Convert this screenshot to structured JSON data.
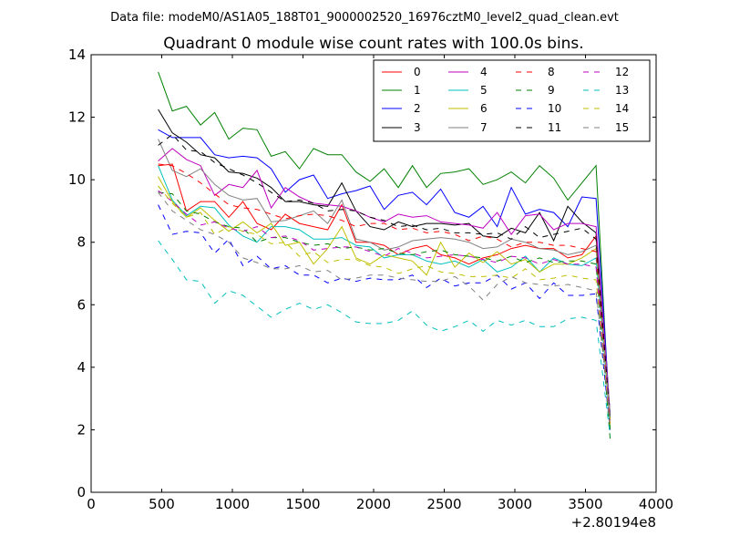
{
  "suptitle": "Data file: modeM0/AS1A05_188T01_9000002520_16976cztM0_level2_quad_clean.evt",
  "chart_data": {
    "type": "line",
    "title": "Quadrant 0 module wise count rates with 100.0s bins.",
    "xlabel": "",
    "ylabel": "",
    "x_offset_label": "+2.80194e8",
    "xlim": [
      0,
      4000
    ],
    "ylim": [
      0,
      14
    ],
    "xticks": [
      0,
      500,
      1000,
      1500,
      2000,
      2500,
      3000,
      3500,
      4000
    ],
    "xtick_labels": [
      "0",
      "500",
      "1000",
      "1500",
      "2000",
      "2500",
      "3000",
      "3500",
      "4000"
    ],
    "yticks": [
      0,
      2,
      4,
      6,
      8,
      10,
      12,
      14
    ],
    "ytick_labels": [
      "0",
      "2",
      "4",
      "6",
      "8",
      "10",
      "12",
      "14"
    ],
    "grid": false,
    "legend": {
      "placement": "top-right",
      "columns": 4
    },
    "x": [
      475,
      575,
      675,
      775,
      875,
      975,
      1075,
      1175,
      1275,
      1375,
      1475,
      1575,
      1675,
      1775,
      1875,
      1975,
      2075,
      2175,
      2275,
      2375,
      2475,
      2575,
      2675,
      2775,
      2875,
      2975,
      3075,
      3175,
      3275,
      3375,
      3475,
      3575,
      3675
    ],
    "series": [
      {
        "name": "0",
        "color": "#ff0000",
        "dash": "solid",
        "values": [
          10.45,
          10.5,
          9.0,
          9.3,
          9.3,
          8.8,
          9.3,
          8.6,
          8.4,
          8.9,
          8.6,
          8.5,
          8.4,
          9.2,
          8.0,
          8.0,
          7.9,
          7.6,
          7.8,
          7.9,
          7.6,
          7.5,
          7.3,
          7.5,
          7.6,
          7.8,
          7.9,
          7.8,
          7.8,
          7.5,
          7.6,
          8.2,
          2.4
        ]
      },
      {
        "name": "1",
        "color": "#008000",
        "dash": "solid",
        "values": [
          13.45,
          12.2,
          12.35,
          11.75,
          12.15,
          11.3,
          11.65,
          11.6,
          10.75,
          10.9,
          10.35,
          11.0,
          10.8,
          10.8,
          10.25,
          9.95,
          10.35,
          9.75,
          10.45,
          9.75,
          10.2,
          10.25,
          10.35,
          9.85,
          10.0,
          10.25,
          9.9,
          10.45,
          10.05,
          9.35,
          9.9,
          10.45,
          2.0
        ]
      },
      {
        "name": "2",
        "color": "#0000ff",
        "dash": "solid",
        "values": [
          11.6,
          11.35,
          11.35,
          11.35,
          10.8,
          10.7,
          10.75,
          10.7,
          10.35,
          9.6,
          10.0,
          10.15,
          9.4,
          9.55,
          9.65,
          9.8,
          9.05,
          9.5,
          9.6,
          9.2,
          9.7,
          8.95,
          8.8,
          9.15,
          8.5,
          9.75,
          8.9,
          9.05,
          8.95,
          8.5,
          9.45,
          9.4,
          2.4
        ]
      },
      {
        "name": "3",
        "color": "#000000",
        "dash": "solid",
        "values": [
          12.25,
          11.5,
          11.2,
          10.8,
          10.7,
          10.25,
          10.2,
          10.05,
          9.75,
          9.3,
          9.3,
          9.2,
          9.15,
          9.9,
          9.0,
          8.5,
          8.4,
          8.65,
          8.5,
          8.6,
          8.6,
          8.55,
          8.6,
          8.2,
          8.15,
          8.45,
          8.3,
          8.95,
          8.05,
          9.15,
          8.65,
          8.3,
          2.3
        ]
      },
      {
        "name": "4",
        "color": "#bf00bf",
        "dash": "solid",
        "values": [
          10.6,
          11.0,
          10.65,
          10.45,
          9.5,
          9.85,
          9.75,
          10.3,
          9.1,
          9.75,
          9.45,
          9.25,
          9.2,
          9.15,
          9.0,
          8.8,
          8.65,
          8.9,
          8.8,
          8.85,
          8.65,
          8.6,
          8.55,
          8.45,
          8.95,
          8.25,
          8.85,
          8.9,
          8.4,
          8.6,
          8.6,
          8.5,
          2.5
        ]
      },
      {
        "name": "5",
        "color": "#00bfbf",
        "dash": "solid",
        "values": [
          10.45,
          9.35,
          8.85,
          9.15,
          9.1,
          8.55,
          8.2,
          8.0,
          8.5,
          8.5,
          8.4,
          8.1,
          8.1,
          8.15,
          7.9,
          7.85,
          7.5,
          7.6,
          7.6,
          7.4,
          7.3,
          7.4,
          7.2,
          7.45,
          7.05,
          7.2,
          7.55,
          7.05,
          7.5,
          7.3,
          7.25,
          7.5,
          2.2
        ]
      },
      {
        "name": "6",
        "color": "#bfbf00",
        "dash": "solid",
        "values": [
          10.1,
          9.3,
          8.8,
          9.1,
          8.7,
          8.35,
          8.65,
          8.3,
          8.6,
          7.9,
          8.0,
          7.3,
          7.8,
          8.5,
          7.5,
          7.3,
          7.6,
          7.5,
          7.4,
          6.95,
          8.0,
          7.2,
          7.65,
          7.35,
          7.7,
          7.3,
          7.45,
          7.05,
          7.3,
          7.3,
          7.5,
          7.8,
          2.3
        ]
      },
      {
        "name": "7",
        "color": "#808080",
        "dash": "solid",
        "values": [
          11.3,
          10.3,
          10.1,
          10.35,
          9.85,
          9.5,
          9.35,
          9.4,
          8.65,
          8.7,
          8.85,
          9.0,
          8.6,
          9.35,
          8.1,
          8.0,
          7.75,
          7.85,
          8.05,
          8.1,
          8.15,
          8.1,
          8.0,
          7.8,
          7.85,
          8.1,
          8.0,
          7.8,
          7.75,
          7.6,
          7.7,
          7.9,
          2.5
        ]
      },
      {
        "name": "8",
        "color": "#ff0000",
        "dash": "dashed",
        "values": [
          10.5,
          10.45,
          10.2,
          9.9,
          9.55,
          9.2,
          9.1,
          9.05,
          8.9,
          8.75,
          8.85,
          8.9,
          8.85,
          8.7,
          8.5,
          8.6,
          8.6,
          8.4,
          8.45,
          8.3,
          8.35,
          8.25,
          8.05,
          8.2,
          8.1,
          7.85,
          8.0,
          8.0,
          7.9,
          7.9,
          7.8,
          7.7,
          2.2
        ]
      },
      {
        "name": "9",
        "color": "#008000",
        "dash": "dashed",
        "values": [
          9.6,
          9.55,
          9.0,
          8.9,
          8.65,
          8.5,
          8.45,
          8.0,
          8.15,
          8.15,
          8.0,
          7.9,
          7.95,
          7.8,
          7.85,
          7.75,
          7.8,
          7.65,
          7.6,
          7.7,
          7.75,
          7.6,
          7.55,
          7.5,
          7.4,
          7.55,
          7.35,
          7.5,
          7.35,
          7.4,
          7.4,
          7.3,
          1.7
        ]
      },
      {
        "name": "10",
        "color": "#0000ff",
        "dash": "dashed",
        "values": [
          9.2,
          8.25,
          8.35,
          8.3,
          7.65,
          8.1,
          7.25,
          7.55,
          7.15,
          7.25,
          6.95,
          6.95,
          6.7,
          6.85,
          6.75,
          6.85,
          6.8,
          6.8,
          6.95,
          6.55,
          6.85,
          6.6,
          6.7,
          6.7,
          6.95,
          6.5,
          6.7,
          6.2,
          6.7,
          6.3,
          6.3,
          6.35,
          2.0
        ]
      },
      {
        "name": "11",
        "color": "#000000",
        "dash": "dashed",
        "values": [
          11.1,
          11.45,
          10.95,
          10.9,
          10.55,
          10.35,
          10.15,
          9.9,
          9.6,
          9.3,
          9.35,
          9.25,
          9.0,
          9.05,
          9.0,
          8.8,
          8.7,
          8.5,
          8.55,
          8.4,
          8.45,
          8.3,
          8.3,
          8.25,
          8.3,
          8.1,
          8.5,
          8.15,
          8.25,
          8.35,
          8.45,
          8.1,
          2.3
        ]
      },
      {
        "name": "12",
        "color": "#bf00bf",
        "dash": "dashed",
        "values": [
          9.65,
          9.3,
          8.9,
          8.55,
          8.65,
          8.45,
          8.35,
          8.5,
          8.15,
          8.2,
          8.05,
          7.75,
          7.8,
          7.85,
          7.85,
          7.7,
          7.55,
          7.8,
          7.65,
          7.5,
          7.55,
          7.6,
          7.55,
          7.45,
          7.35,
          7.55,
          7.5,
          7.3,
          7.45,
          7.3,
          7.3,
          7.2,
          2.3
        ]
      },
      {
        "name": "13",
        "color": "#00bfbf",
        "dash": "dashed",
        "values": [
          8.05,
          7.45,
          6.8,
          6.75,
          6.05,
          6.45,
          6.3,
          5.95,
          5.6,
          5.85,
          6.05,
          5.85,
          6.0,
          5.75,
          5.45,
          5.4,
          5.4,
          5.5,
          5.8,
          5.35,
          5.15,
          5.3,
          5.5,
          5.15,
          5.5,
          5.35,
          5.5,
          5.3,
          5.3,
          5.55,
          5.6,
          5.5,
          1.8
        ]
      },
      {
        "name": "14",
        "color": "#bfbf00",
        "dash": "dashed",
        "values": [
          9.8,
          9.25,
          8.8,
          8.95,
          8.25,
          8.5,
          8.35,
          8.25,
          7.95,
          8.0,
          7.55,
          7.7,
          7.35,
          7.45,
          7.45,
          7.25,
          7.2,
          7.0,
          7.15,
          7.25,
          7.05,
          7.0,
          6.9,
          6.9,
          6.95,
          6.85,
          7.15,
          6.8,
          6.85,
          6.95,
          6.85,
          6.8,
          2.1
        ]
      },
      {
        "name": "15",
        "color": "#808080",
        "dash": "dashed",
        "values": [
          9.6,
          9.0,
          8.7,
          8.4,
          8.25,
          8.0,
          7.5,
          7.35,
          7.15,
          7.15,
          7.25,
          7.05,
          7.1,
          6.8,
          6.85,
          6.95,
          6.95,
          6.85,
          6.8,
          6.75,
          6.75,
          6.9,
          6.6,
          6.15,
          6.65,
          6.9,
          6.7,
          6.65,
          6.6,
          6.65,
          6.55,
          6.45,
          2.3
        ]
      }
    ]
  }
}
